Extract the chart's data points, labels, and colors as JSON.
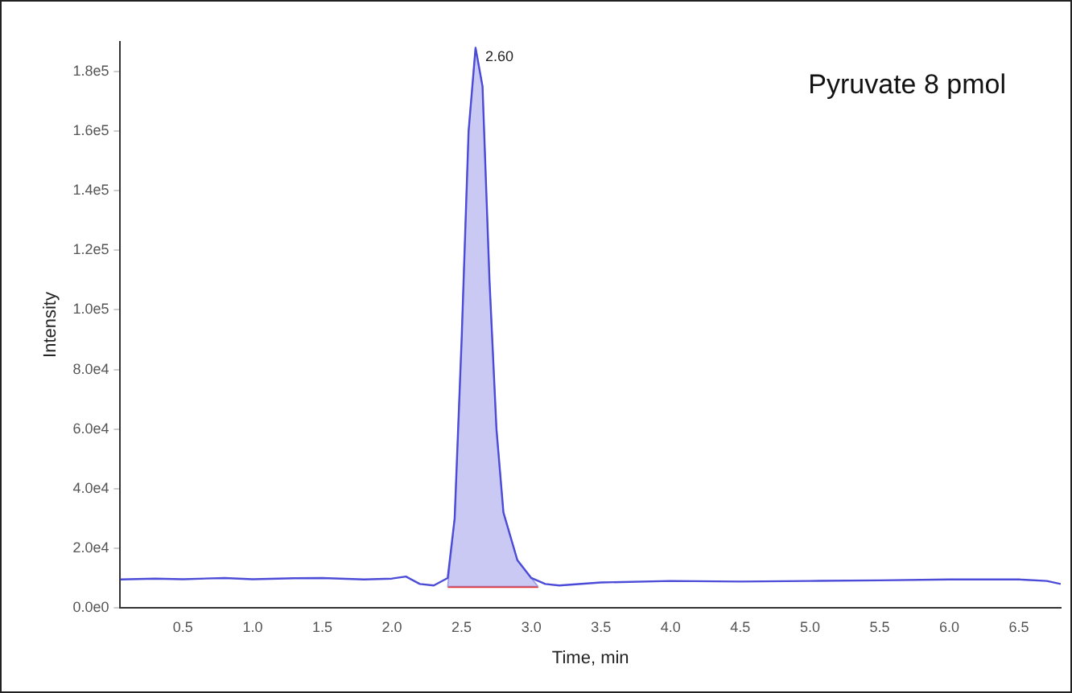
{
  "chart_data": {
    "type": "line",
    "xlabel": "Time, min",
    "ylabel": "Intensity",
    "xlim": [
      0.05,
      6.8
    ],
    "ylim": [
      0,
      190000
    ],
    "xticks": [
      {
        "value": 0.5,
        "label": "0.5"
      },
      {
        "value": 1,
        "label": "1.0"
      },
      {
        "value": 1.5,
        "label": "1.5"
      },
      {
        "value": 2,
        "label": "2.0"
      },
      {
        "value": 2.5,
        "label": "2.5"
      },
      {
        "value": 3,
        "label": "3.0"
      },
      {
        "value": 3.5,
        "label": "3.5"
      },
      {
        "value": 4,
        "label": "4.0"
      },
      {
        "value": 4.5,
        "label": "4.5"
      },
      {
        "value": 5,
        "label": "5.0"
      },
      {
        "value": 5.5,
        "label": "5.5"
      },
      {
        "value": 6,
        "label": "6.0"
      },
      {
        "value": 6.5,
        "label": "6.5"
      }
    ],
    "yticks": [
      {
        "value": 0,
        "label": "0.0e0"
      },
      {
        "value": 20000,
        "label": "2.0e4"
      },
      {
        "value": 40000,
        "label": "4.0e4"
      },
      {
        "value": 60000,
        "label": "6.0e4"
      },
      {
        "value": 80000,
        "label": "8.0e4"
      },
      {
        "value": 100000,
        "label": "1.0e5"
      },
      {
        "value": 120000,
        "label": "1.2e5"
      },
      {
        "value": 140000,
        "label": "1.4e5"
      },
      {
        "value": 160000,
        "label": "1.6e5"
      },
      {
        "value": 180000,
        "label": "1.8e5"
      }
    ],
    "series": [
      {
        "type": "line",
        "color": "#4b4bd8",
        "x": [
          0.05,
          0.3,
          0.5,
          0.8,
          1.0,
          1.3,
          1.5,
          1.8,
          2.0,
          2.1,
          2.2,
          2.3,
          2.4,
          2.45,
          2.5,
          2.55,
          2.6,
          2.65,
          2.7,
          2.75,
          2.8,
          2.9,
          3.0,
          3.1,
          3.2,
          3.5,
          4.0,
          4.5,
          5.0,
          5.5,
          6.0,
          6.5,
          6.7,
          6.8
        ],
        "values": [
          9500,
          9800,
          9600,
          10000,
          9600,
          9900,
          10000,
          9500,
          9800,
          10500,
          8000,
          7500,
          10000,
          30000,
          90000,
          160000,
          188000,
          175000,
          110000,
          60000,
          32000,
          16000,
          10000,
          8000,
          7500,
          8500,
          9000,
          8800,
          9000,
          9200,
          9500,
          9500,
          9000,
          8000
        ]
      },
      {
        "type": "area",
        "color": "#9a9ae8",
        "x": [
          2.4,
          2.45,
          2.5,
          2.55,
          2.6,
          2.65,
          2.7,
          2.75,
          2.8,
          2.9,
          3.0,
          3.05
        ],
        "values": [
          7000,
          30000,
          90000,
          160000,
          188000,
          175000,
          110000,
          60000,
          32000,
          16000,
          10000,
          7000
        ]
      },
      {
        "type": "line",
        "color": "#e03030",
        "x": [
          2.4,
          3.05
        ],
        "values": [
          7000,
          7000
        ]
      }
    ],
    "annotations": [
      {
        "text": "2.60",
        "x": 2.6,
        "y": 188000
      },
      "Pyruvate 8 pmol"
    ],
    "grid": false,
    "legend": false,
    "marker": "none",
    "line_style": "solid"
  }
}
